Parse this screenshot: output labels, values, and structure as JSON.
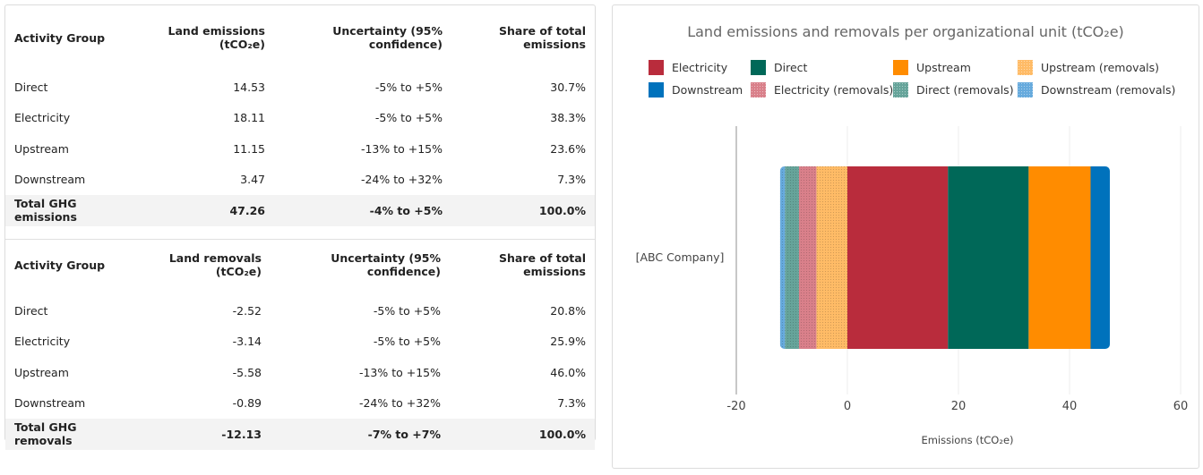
{
  "emissions_table": {
    "headers": [
      "Activity Group",
      "Land emissions (tCO₂e)",
      "Uncertainty (95% confidence)",
      "Share of total emissions"
    ],
    "rows": [
      [
        "Direct",
        "14.53",
        "-5% to +5%",
        "30.7%"
      ],
      [
        "Electricity",
        "18.11",
        "-5% to +5%",
        "38.3%"
      ],
      [
        "Upstream",
        "11.15",
        "-13% to +15%",
        "23.6%"
      ],
      [
        "Downstream",
        "3.47",
        "-24% to +32%",
        "7.3%"
      ]
    ],
    "total": [
      "Total GHG emissions",
      "47.26",
      "-4% to +5%",
      "100.0%"
    ]
  },
  "removals_table": {
    "headers": [
      "Activity Group",
      "Land removals (tCO₂e)",
      "Uncertainty (95% confidence)",
      "Share of total emissions"
    ],
    "rows": [
      [
        "Direct",
        "-2.52",
        "-5% to +5%",
        "20.8%"
      ],
      [
        "Electricity",
        "-3.14",
        "-5% to +5%",
        "25.9%"
      ],
      [
        "Upstream",
        "-5.58",
        "-13% to +15%",
        "46.0%"
      ],
      [
        "Downstream",
        "-0.89",
        "-24% to +32%",
        "7.3%"
      ]
    ],
    "total": [
      "Total GHG removals",
      "-12.13",
      "-7% to +7%",
      "100.0%"
    ]
  },
  "chart_data": {
    "type": "bar",
    "orientation": "horizontal",
    "stacked": true,
    "title": "Land emissions and removals per organizational unit (tCO₂e)",
    "xlabel": "Emissions (tCO₂e)",
    "ylabel": "",
    "categories": [
      "[ABC Company]"
    ],
    "xlim": [
      -20,
      60
    ],
    "xticks": [
      "-20",
      "0",
      "20",
      "40",
      "60"
    ],
    "grid": true,
    "legend_position": "top",
    "series": [
      {
        "name": "Electricity",
        "values": [
          18.11
        ],
        "color": "#b92c3c",
        "pattern": false
      },
      {
        "name": "Direct",
        "values": [
          14.53
        ],
        "color": "#006858",
        "pattern": false
      },
      {
        "name": "Upstream",
        "values": [
          11.15
        ],
        "color": "#ff8c00",
        "pattern": false
      },
      {
        "name": "Upstream (removals)",
        "values": [
          -5.58
        ],
        "color": "#ffbb66",
        "pattern": true
      },
      {
        "name": "Downstream",
        "values": [
          3.47
        ],
        "color": "#0072bc",
        "pattern": false
      },
      {
        "name": "Electricity (removals)",
        "values": [
          -3.14
        ],
        "color": "#d9808a",
        "pattern": true
      },
      {
        "name": "Direct (removals)",
        "values": [
          -2.52
        ],
        "color": "#66a49a",
        "pattern": true
      },
      {
        "name": "Downstream (removals)",
        "values": [
          -0.89
        ],
        "color": "#66aadd",
        "pattern": true
      }
    ]
  }
}
